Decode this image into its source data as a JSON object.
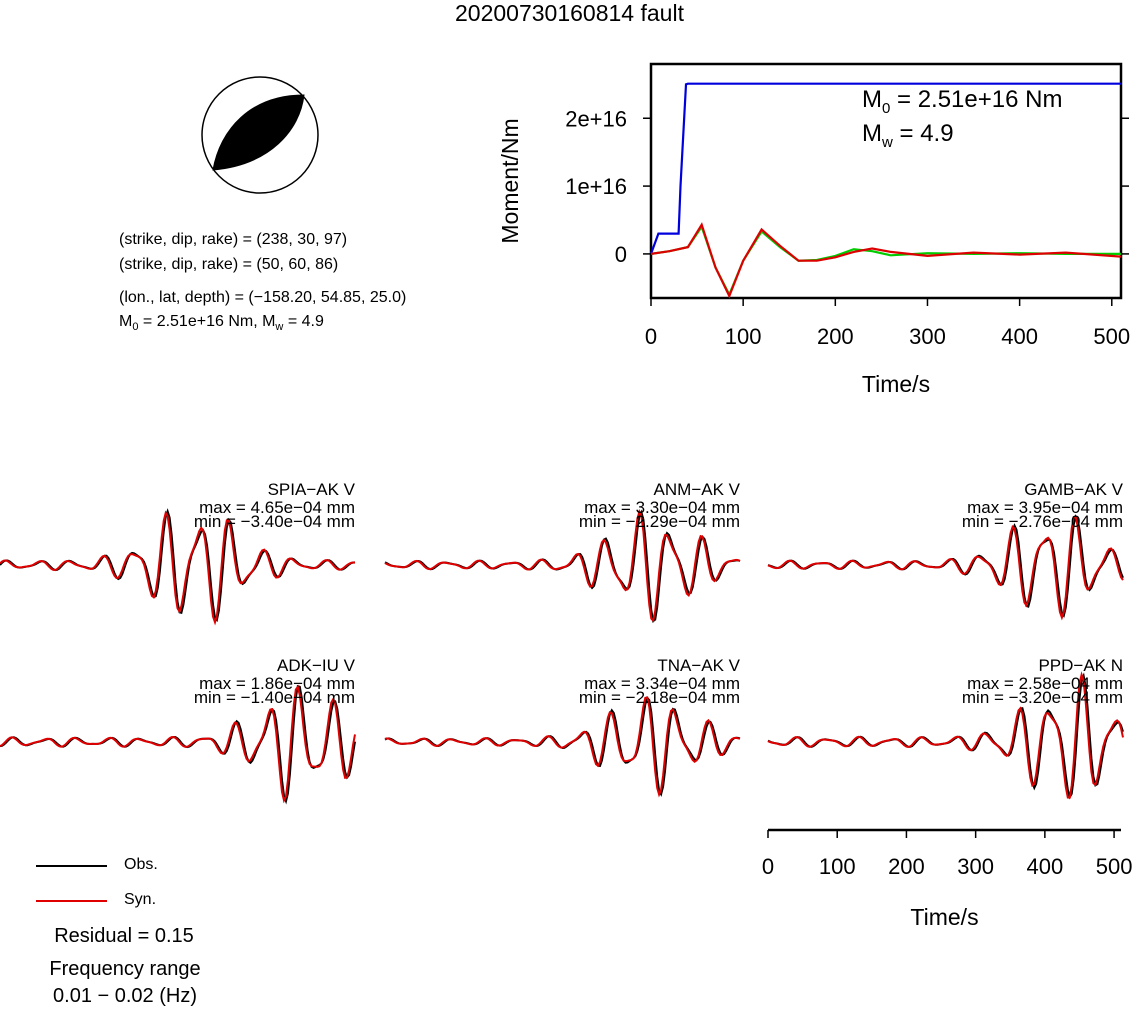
{
  "title": "20200730160814 fault",
  "info": {
    "line1": "(strike, dip, rake) = (238, 30, 97)",
    "line2": "(strike, dip, rake) = (50, 60, 86)",
    "line3": "(lon., lat, depth) = (−158.20, 54.85, 25.0)",
    "line4_prefix": "M",
    "line4_sub": "0",
    "line4_mid": " = 2.51e+16 Nm, M",
    "line4_sub2": "w",
    "line4_suffix": " = 4.9"
  },
  "legend": {
    "obs_label": "Obs.",
    "syn_label": "Syn.",
    "obs_color": "#000000",
    "syn_color": "#e00000"
  },
  "residual": "Residual = 0.15",
  "freq_title": "Frequency range",
  "freq_value": "0.01 − 0.02 (Hz)",
  "chart_data": [
    {
      "type": "line",
      "name": "moment-rate",
      "xlabel": "Time/s",
      "ylabel": "Moment/Nm",
      "xlim": [
        0,
        510
      ],
      "ylim": [
        -6500000000000000.0,
        2.8e+16
      ],
      "x_ticks": [
        "0",
        "100",
        "200",
        "300",
        "400",
        "500"
      ],
      "y_ticks": [
        "0",
        "1e+16",
        "2e+16"
      ],
      "annotation_m0": {
        "prefix": "M",
        "sub": "0",
        "suffix": " = 2.51e+16 Nm"
      },
      "annotation_mw": {
        "prefix": "M",
        "sub": "w",
        "suffix": " = 4.9"
      },
      "series": [
        {
          "color": "#0000dd",
          "x": [
            0,
            8,
            10,
            30,
            32,
            38,
            40,
            510
          ],
          "y": [
            0,
            3000000000000000.0,
            3000000000000000.0,
            3000000000000000.0,
            1e+16,
            2.5e+16,
            2.51e+16,
            2.51e+16
          ]
        },
        {
          "color": "#00cc00",
          "x": [
            0,
            20,
            40,
            55,
            70,
            85,
            100,
            120,
            140,
            160,
            180,
            200,
            220,
            240,
            260,
            300,
            350,
            400,
            450,
            510
          ],
          "y": [
            0,
            400000000000000.0,
            1000000000000000.0,
            4000000000000000.0,
            -2000000000000000.0,
            -6000000000000000.0,
            -1000000000000000.0,
            3300000000000000.0,
            1000000000000000.0,
            -1000000000000000.0,
            -900000000000000.0,
            -300000000000000.0,
            700000000000000.0,
            400000000000000.0,
            -200000000000000.0,
            100000000000000.0,
            0,
            100000000000000.0,
            0,
            0
          ]
        },
        {
          "color": "#dd0000",
          "x": [
            0,
            20,
            40,
            55,
            70,
            85,
            100,
            120,
            140,
            160,
            180,
            200,
            220,
            240,
            260,
            300,
            350,
            400,
            450,
            510
          ],
          "y": [
            0,
            400000000000000.0,
            1000000000000000.0,
            4300000000000000.0,
            -2000000000000000.0,
            -6200000000000000.0,
            -1000000000000000.0,
            3600000000000000.0,
            1200000000000000.0,
            -1000000000000000.0,
            -1000000000000000.0,
            -500000000000000.0,
            300000000000000.0,
            800000000000000.0,
            300000000000000.0,
            -300000000000000.0,
            200000000000000.0,
            -100000000000000.0,
            200000000000000.0,
            -400000000000000.0
          ]
        }
      ]
    },
    {
      "type": "line",
      "name": "waveforms",
      "xlabel": "Time/s",
      "xlim": [
        0,
        510
      ],
      "x_ticks": [
        "0",
        "100",
        "200",
        "300",
        "400",
        "500"
      ],
      "stations": [
        {
          "label": "SPIA−AK V",
          "max": "max = 4.65e−04 mm",
          "min": "min = −3.40e−04 mm"
        },
        {
          "label": "ANM−AK V",
          "max": "max = 3.30e−04 mm",
          "min": "min = −2.29e−04 mm"
        },
        {
          "label": "GAMB−AK V",
          "max": "max = 3.95e−04 mm",
          "min": "min = −2.76e−04 mm"
        },
        {
          "label": "ADK−IU V",
          "max": "max = 1.86e−04 mm",
          "min": "min = −1.40e−04 mm"
        },
        {
          "label": "TNA−AK V",
          "max": "max = 3.34e−04 mm",
          "min": "min = −2.18e−04 mm"
        },
        {
          "label": "PPD−AK N",
          "max": "max = 2.58e−04 mm",
          "min": "min = −3.20e−04 mm"
        }
      ]
    }
  ]
}
